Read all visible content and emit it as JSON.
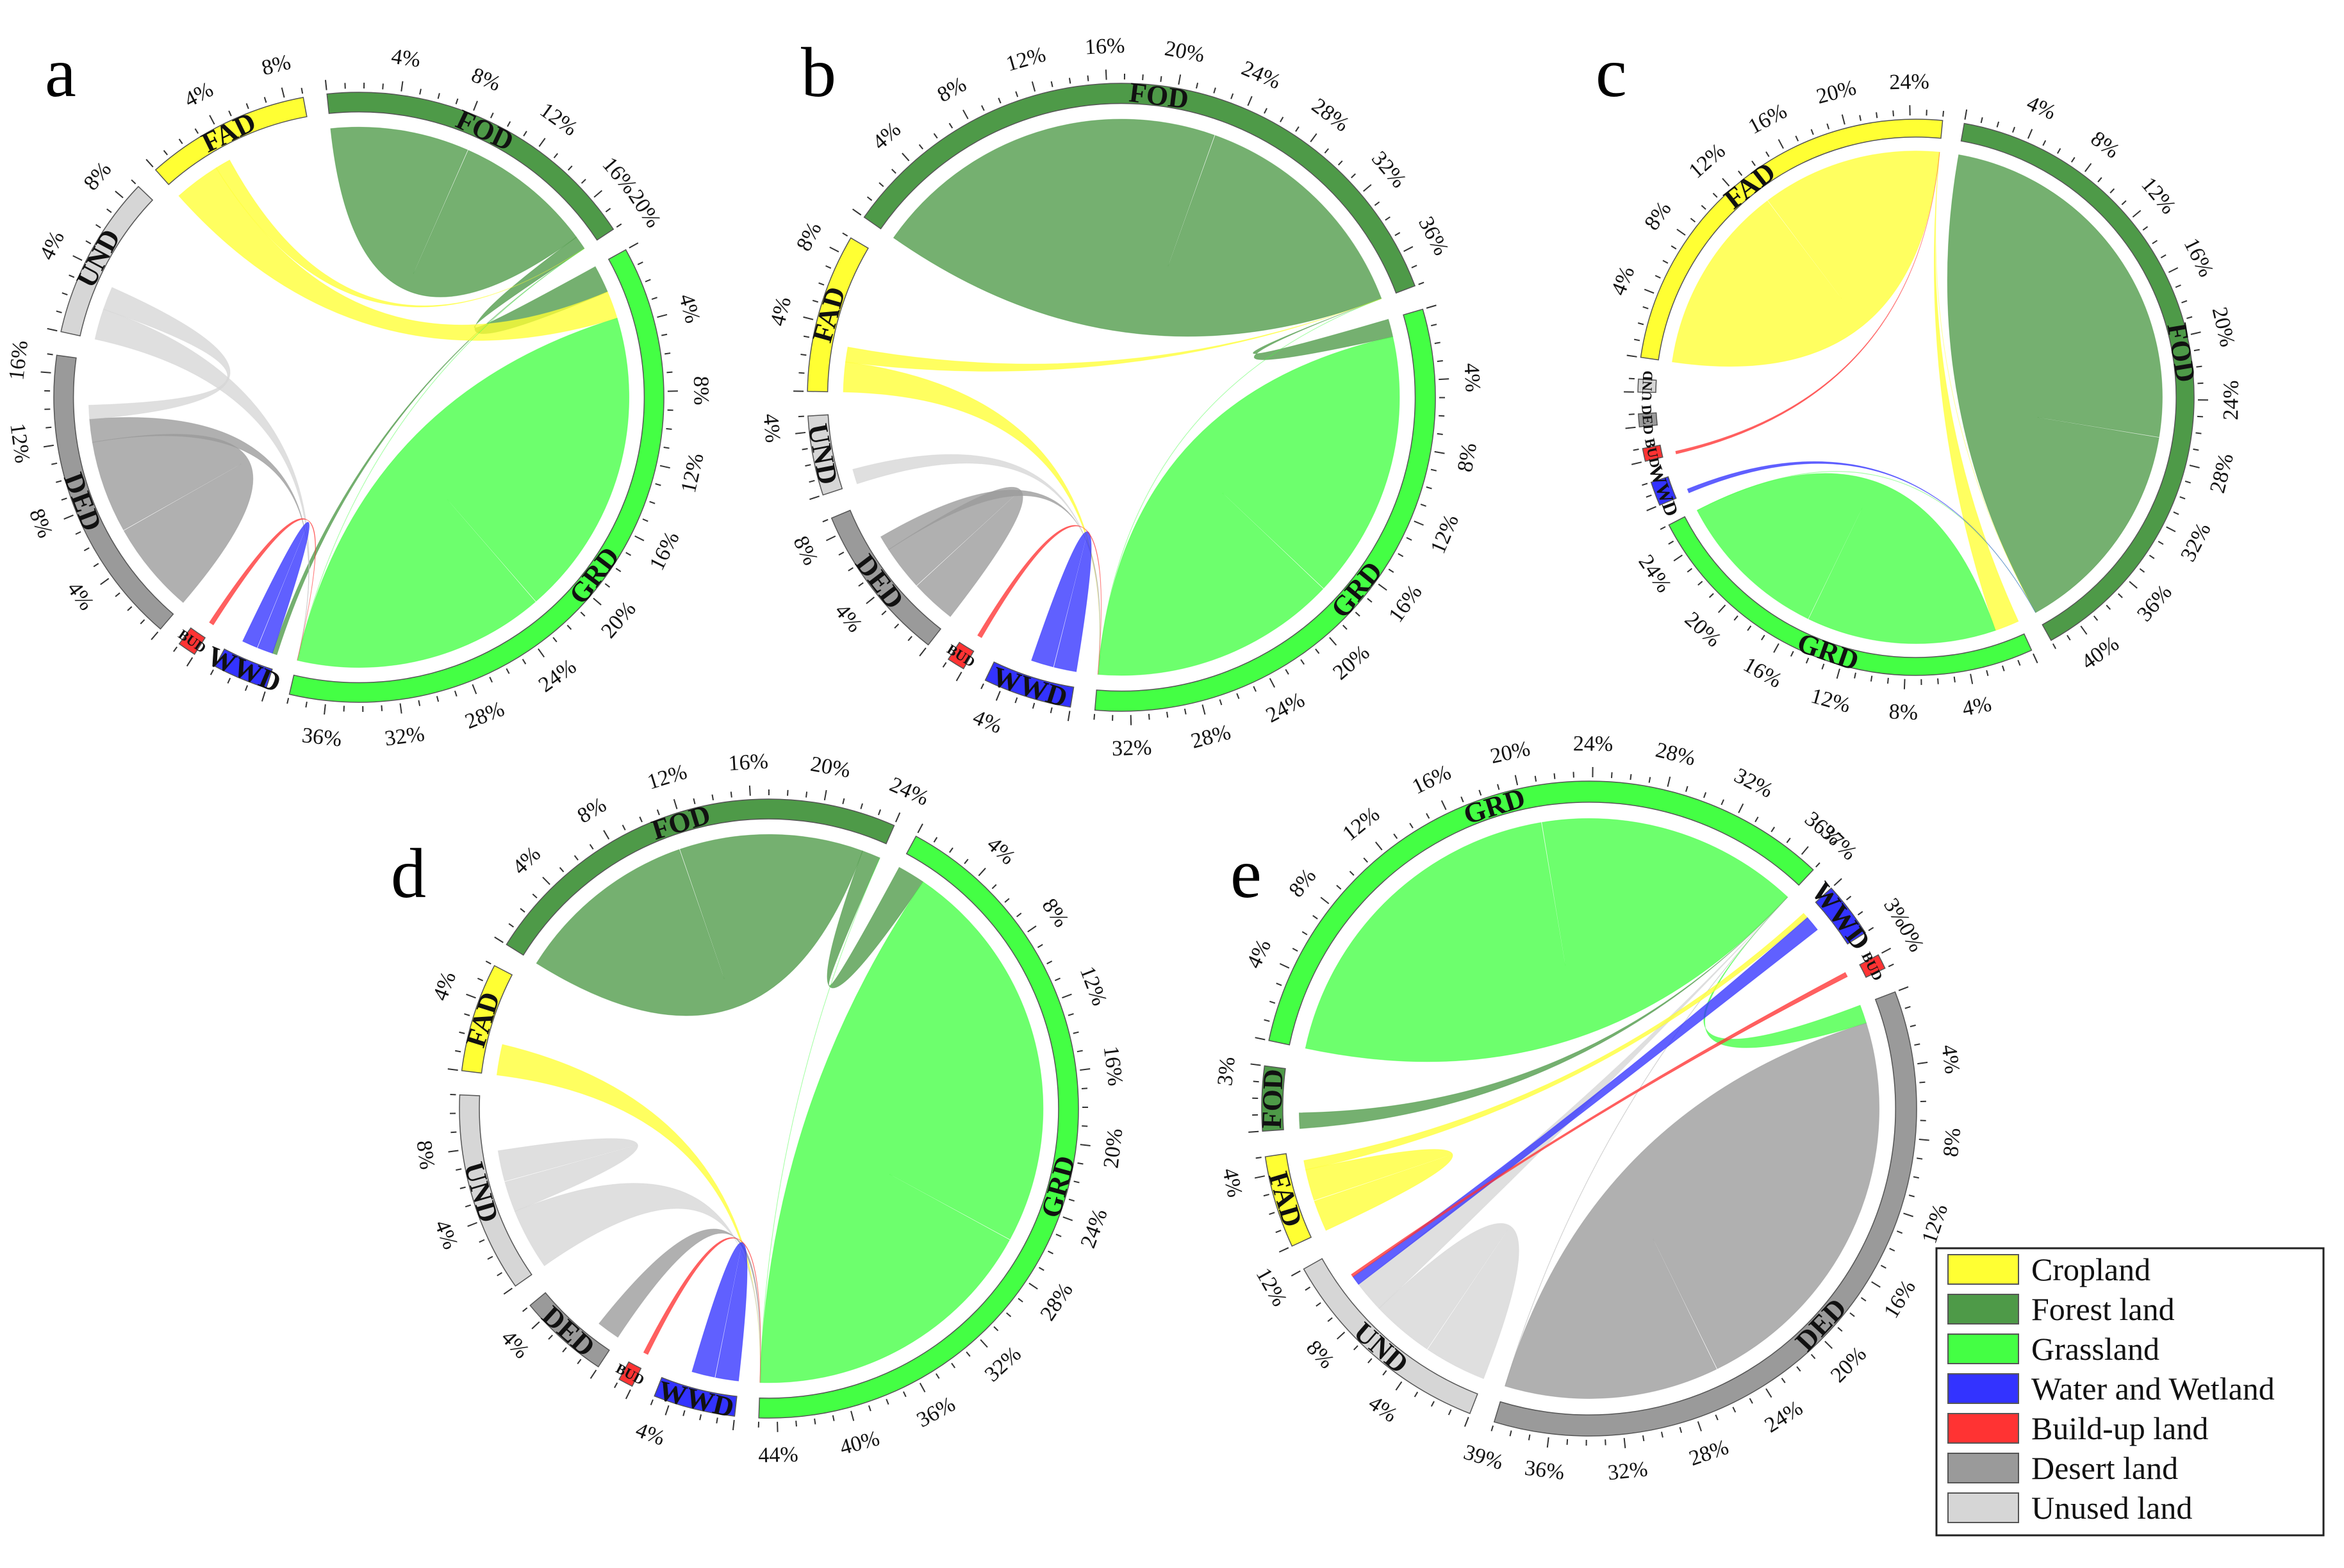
{
  "figure": {
    "legend": [
      {
        "key": "FAD",
        "label": "Cropland",
        "color": "#ffff33"
      },
      {
        "key": "FOD",
        "label": "Forest land",
        "color": "#4e9a48"
      },
      {
        "key": "GRD",
        "label": "Grassland",
        "color": "#44ff44"
      },
      {
        "key": "WWD",
        "label": "Water and Wetland",
        "color": "#3333ff"
      },
      {
        "key": "BUD",
        "label": "Build-up land",
        "color": "#ff3333"
      },
      {
        "key": "DED",
        "label": "Desert land",
        "color": "#9a9a9a"
      },
      {
        "key": "UND",
        "label": "Unused land",
        "color": "#d6d6d6"
      }
    ]
  },
  "chart_data": [
    {
      "type": "chord",
      "panel": "a",
      "unit": "%",
      "segments": [
        {
          "key": "FOD",
          "label": "FOD",
          "share": 18,
          "ticks": [
            "4%",
            "8%",
            "12%",
            "16%",
            "20%"
          ]
        },
        {
          "key": "GRD",
          "label": "GRD",
          "share": 38,
          "ticks": [
            "4%",
            "8%",
            "12%",
            "16%",
            "20%",
            "24%",
            "28%",
            "32%",
            "36%"
          ]
        },
        {
          "key": "WWD",
          "label": "WWD",
          "share": 3,
          "ticks": []
        },
        {
          "key": "BUD",
          "label": "BUD",
          "share": 1,
          "ticks": []
        },
        {
          "key": "DED",
          "label": "DED",
          "share": 16.5,
          "ticks": [
            "4%",
            "8%",
            "12%",
            "16%"
          ]
        },
        {
          "key": "UND",
          "label": "UND",
          "share": 9,
          "ticks": [
            "4%",
            "8%"
          ]
        },
        {
          "key": "FAD",
          "label": "FAD",
          "share": 9,
          "ticks": [
            "4%",
            "8%"
          ]
        }
      ],
      "flows": [
        {
          "from": "FOD",
          "to": "FOD",
          "value": 9
        },
        {
          "from": "FOD",
          "to": "GRD",
          "value": 3
        },
        {
          "from": "FOD",
          "to": "WWD",
          "value": 0.5
        },
        {
          "from": "FAD",
          "to": "GRD",
          "value": 3
        },
        {
          "from": "FAD",
          "to": "FOD",
          "value": 1
        },
        {
          "from": "GRD",
          "to": "GRD",
          "value": 20
        },
        {
          "from": "GRD",
          "to": "FOD",
          "value": 2
        },
        {
          "from": "DED",
          "to": "DED",
          "value": 6
        },
        {
          "from": "DED",
          "to": "GRD",
          "value": 1.5
        },
        {
          "from": "UND",
          "to": "GRD",
          "value": 2
        },
        {
          "from": "UND",
          "to": "DED",
          "value": 1.5
        },
        {
          "from": "WWD",
          "to": "WWD",
          "value": 1
        },
        {
          "from": "BUD",
          "to": "GRD",
          "value": 0.3
        }
      ]
    },
    {
      "type": "chord",
      "panel": "b",
      "unit": "%",
      "segments": [
        {
          "key": "FOD",
          "label": "FOD",
          "share": 38,
          "ticks": [
            "4%",
            "8%",
            "12%",
            "16%",
            "20%",
            "24%",
            "28%",
            "32%",
            "36%"
          ]
        },
        {
          "key": "GRD",
          "label": "GRD",
          "share": 34,
          "ticks": [
            "4%",
            "8%",
            "12%",
            "16%",
            "20%",
            "24%",
            "28%",
            "32%"
          ]
        },
        {
          "key": "WWD",
          "label": "WWD",
          "share": 5,
          "ticks": [
            "4%"
          ]
        },
        {
          "key": "BUD",
          "label": "BUD",
          "share": 1,
          "ticks": []
        },
        {
          "key": "DED",
          "label": "DED",
          "share": 9,
          "ticks": [
            "4%",
            "8%"
          ]
        },
        {
          "key": "UND",
          "label": "UND",
          "share": 4.5,
          "ticks": [
            "4%"
          ]
        },
        {
          "key": "FAD",
          "label": "FAD",
          "share": 9,
          "ticks": [
            "4%",
            "8%"
          ]
        }
      ],
      "flows": [
        {
          "from": "FOD",
          "to": "FOD",
          "value": 24
        },
        {
          "from": "FOD",
          "to": "GRD",
          "value": 2
        },
        {
          "from": "GRD",
          "to": "GRD",
          "value": 18
        },
        {
          "from": "GRD",
          "to": "FOD",
          "value": 2
        },
        {
          "from": "FAD",
          "to": "GRD",
          "value": 2
        },
        {
          "from": "FAD",
          "to": "FOD",
          "value": 1
        },
        {
          "from": "DED",
          "to": "DED",
          "value": 3
        },
        {
          "from": "DED",
          "to": "GRD",
          "value": 1
        },
        {
          "from": "UND",
          "to": "GRD",
          "value": 1
        },
        {
          "from": "WWD",
          "to": "WWD",
          "value": 1.5
        },
        {
          "from": "BUD",
          "to": "GRD",
          "value": 0.3
        }
      ]
    },
    {
      "type": "chord",
      "panel": "c",
      "unit": "%",
      "segments": [
        {
          "key": "FOD",
          "label": "FOD",
          "share": 42,
          "ticks": [
            "4%",
            "8%",
            "12%",
            "16%",
            "20%",
            "24%",
            "28%",
            "32%",
            "36%",
            "40%"
          ]
        },
        {
          "key": "GRD",
          "label": "GRD",
          "share": 26,
          "ticks": [
            "4%",
            "8%",
            "12%",
            "16%",
            "20%",
            "24%"
          ]
        },
        {
          "key": "WWD",
          "label": "WWD",
          "share": 1.5,
          "ticks": []
        },
        {
          "key": "BUD",
          "label": "BUD",
          "share": 0.8,
          "ticks": []
        },
        {
          "key": "DED",
          "label": "DED",
          "share": 0.8,
          "ticks": []
        },
        {
          "key": "UND",
          "label": "UND",
          "share": 0.8,
          "ticks": []
        },
        {
          "key": "FAD",
          "label": "FAD",
          "share": 26,
          "ticks": [
            "4%",
            "8%",
            "12%",
            "16%",
            "20%",
            "24%"
          ]
        }
      ],
      "flows": [
        {
          "from": "FOD",
          "to": "FOD",
          "value": 28
        },
        {
          "from": "FAD",
          "to": "FAD",
          "value": 14
        },
        {
          "from": "FAD",
          "to": "FOD",
          "value": 5
        },
        {
          "from": "FAD",
          "to": "GRD",
          "value": 3
        },
        {
          "from": "GRD",
          "to": "GRD",
          "value": 14
        },
        {
          "from": "GRD",
          "to": "FOD",
          "value": 4
        },
        {
          "from": "WWD",
          "to": "FOD",
          "value": 0.3
        },
        {
          "from": "BUD",
          "to": "FAD",
          "value": 0.2
        }
      ]
    },
    {
      "type": "chord",
      "panel": "d",
      "unit": "%",
      "segments": [
        {
          "key": "FOD",
          "label": "FOD",
          "share": 24,
          "ticks": [
            "4%",
            "8%",
            "12%",
            "16%",
            "20%",
            "24%"
          ]
        },
        {
          "key": "GRD",
          "label": "GRD",
          "share": 45,
          "ticks": [
            "4%",
            "8%",
            "12%",
            "16%",
            "20%",
            "24%",
            "28%",
            "32%",
            "36%",
            "40%",
            "44%"
          ]
        },
        {
          "key": "WWD",
          "label": "WWD",
          "share": 4.5,
          "ticks": [
            "4%"
          ]
        },
        {
          "key": "BUD",
          "label": "BUD",
          "share": 0.8,
          "ticks": []
        },
        {
          "key": "DED",
          "label": "DED",
          "share": 5,
          "ticks": [
            "4%"
          ]
        },
        {
          "key": "UND",
          "label": "UND",
          "share": 11,
          "ticks": [
            "4%",
            "8%"
          ]
        },
        {
          "key": "FAD",
          "label": "FAD",
          "share": 6,
          "ticks": [
            "4%"
          ]
        }
      ],
      "flows": [
        {
          "from": "FOD",
          "to": "FOD",
          "value": 12
        },
        {
          "from": "FOD",
          "to": "GRD",
          "value": 3
        },
        {
          "from": "GRD",
          "to": "GRD",
          "value": 26
        },
        {
          "from": "GRD",
          "to": "FOD",
          "value": 3
        },
        {
          "from": "FAD",
          "to": "GRD",
          "value": 2
        },
        {
          "from": "UND",
          "to": "GRD",
          "value": 4
        },
        {
          "from": "UND",
          "to": "UND",
          "value": 2
        },
        {
          "from": "DED",
          "to": "GRD",
          "value": 1.5
        },
        {
          "from": "WWD",
          "to": "WWD",
          "value": 1.5
        },
        {
          "from": "BUD",
          "to": "GRD",
          "value": 0.3
        }
      ]
    },
    {
      "type": "chord",
      "panel": "e",
      "unit": "%",
      "segments": [
        {
          "key": "GRD",
          "label": "GRD",
          "share": 37,
          "ticks": [
            "4%",
            "8%",
            "12%",
            "16%",
            "20%",
            "24%",
            "28%",
            "32%",
            "36%",
            "37%"
          ]
        },
        {
          "key": "WWD",
          "label": "WWD",
          "share": 3,
          "ticks": [
            "3%"
          ]
        },
        {
          "key": "BUD",
          "label": "BUD",
          "share": 0.8,
          "ticks": [
            "0%"
          ]
        },
        {
          "key": "DED",
          "label": "DED",
          "share": 39,
          "ticks": [
            "4%",
            "8%",
            "12%",
            "16%",
            "20%",
            "24%",
            "28%",
            "32%",
            "36%",
            "39%"
          ]
        },
        {
          "key": "UND",
          "label": "UND",
          "share": 12,
          "ticks": [
            "4%",
            "8%",
            "12%"
          ]
        },
        {
          "key": "FAD",
          "label": "FAD",
          "share": 5,
          "ticks": [
            "4%"
          ]
        },
        {
          "key": "FOD",
          "label": "FOD",
          "share": 3.5,
          "ticks": [
            "3%"
          ]
        }
      ],
      "flows": [
        {
          "from": "GRD",
          "to": "GRD",
          "value": 22
        },
        {
          "from": "GRD",
          "to": "DED",
          "value": 2
        },
        {
          "from": "DED",
          "to": "DED",
          "value": 26
        },
        {
          "from": "DED",
          "to": "GRD",
          "value": 2
        },
        {
          "from": "UND",
          "to": "UND",
          "value": 4
        },
        {
          "from": "UND",
          "to": "GRD",
          "value": 2
        },
        {
          "from": "FAD",
          "to": "FAD",
          "value": 2
        },
        {
          "from": "FAD",
          "to": "WWD",
          "value": 0.6
        },
        {
          "from": "FOD",
          "to": "GRD",
          "value": 1
        },
        {
          "from": "WWD",
          "to": "UND",
          "value": 1
        },
        {
          "from": "BUD",
          "to": "UND",
          "value": 0.3
        }
      ]
    }
  ]
}
